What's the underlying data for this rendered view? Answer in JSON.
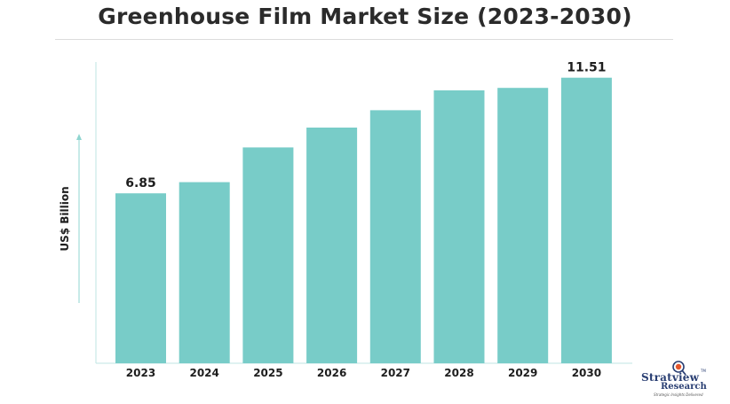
{
  "chart_data": {
    "type": "bar",
    "title": "Greenhouse Film Market Size (2023-2030)",
    "xlabel": "",
    "ylabel": "US$ Billion",
    "categories": [
      "2023",
      "2024",
      "2025",
      "2026",
      "2027",
      "2028",
      "2029",
      "2030"
    ],
    "values": [
      6.85,
      7.3,
      8.7,
      9.5,
      10.2,
      11.0,
      11.1,
      11.51
    ],
    "data_labels": {
      "2023": "6.85",
      "2030": "11.51"
    },
    "ylim": [
      0,
      12.5
    ],
    "grid": false,
    "legend": "none",
    "colors": {
      "bar": "#78ccc8",
      "axis": "#bfe6e3",
      "text": "#1e1e1e"
    }
  },
  "brand": {
    "name": "Stratview",
    "sub": "Research",
    "tagline": "Strategic Insights Delivered",
    "tm": "TM"
  }
}
